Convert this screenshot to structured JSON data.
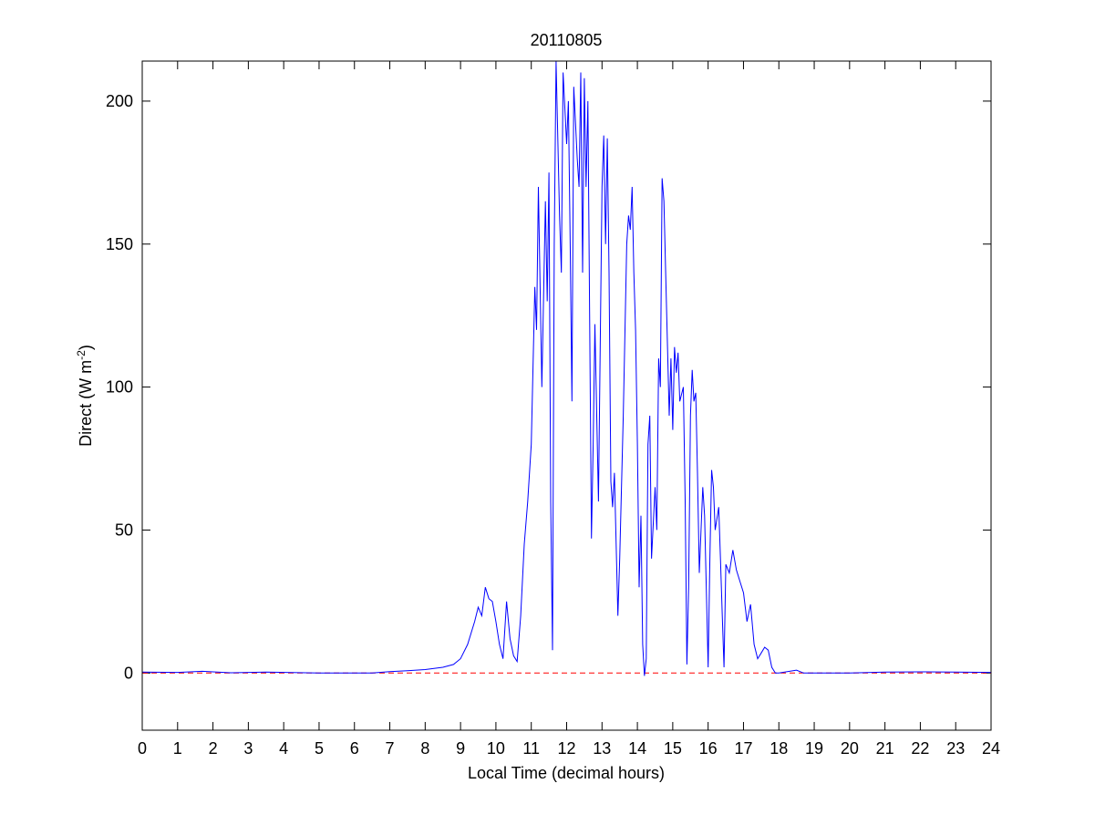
{
  "chart_data": {
    "type": "line",
    "title": "20110805",
    "xlabel": "Local Time (decimal hours)",
    "ylabel": {
      "text": "Direct (W m",
      "sup": "-2",
      "end": ")"
    },
    "xlim": [
      0,
      24
    ],
    "xticks": [
      0,
      1,
      2,
      3,
      4,
      5,
      6,
      7,
      8,
      9,
      10,
      11,
      12,
      13,
      14,
      15,
      16,
      17,
      18,
      19,
      20,
      21,
      22,
      23,
      24
    ],
    "ylim": [
      -20,
      214
    ],
    "yticks": [
      0,
      50,
      100,
      150,
      200
    ],
    "reference_line": {
      "value": 0,
      "color": "#ff0000",
      "style": "dashed"
    },
    "series": [
      {
        "color": "#0000ff",
        "x": [
          0,
          1,
          1.7,
          2.5,
          3.5,
          5,
          6.5,
          7,
          7.5,
          8,
          8.5,
          8.8,
          9,
          9.2,
          9.4,
          9.5,
          9.6,
          9.7,
          9.8,
          9.9,
          10.0,
          10.1,
          10.2,
          10.3,
          10.4,
          10.5,
          10.6,
          10.7,
          10.8,
          10.9,
          11.0,
          11.1,
          11.15,
          11.2,
          11.3,
          11.4,
          11.45,
          11.5,
          11.55,
          11.6,
          11.65,
          11.7,
          11.8,
          11.85,
          11.9,
          12.0,
          12.05,
          12.1,
          12.15,
          12.2,
          12.3,
          12.35,
          12.4,
          12.45,
          12.5,
          12.55,
          12.6,
          12.7,
          12.75,
          12.8,
          12.85,
          12.9,
          13.0,
          13.05,
          13.1,
          13.15,
          13.2,
          13.25,
          13.3,
          13.35,
          13.4,
          13.45,
          13.5,
          13.6,
          13.7,
          13.75,
          13.8,
          13.85,
          13.9,
          13.95,
          14.0,
          14.05,
          14.1,
          14.15,
          14.2,
          14.25,
          14.3,
          14.35,
          14.4,
          14.5,
          14.55,
          14.6,
          14.65,
          14.7,
          14.75,
          14.8,
          14.9,
          14.95,
          15.0,
          15.05,
          15.1,
          15.15,
          15.2,
          15.3,
          15.35,
          15.4,
          15.45,
          15.5,
          15.55,
          15.6,
          15.65,
          15.7,
          15.75,
          15.8,
          15.85,
          15.9,
          16.0,
          16.05,
          16.1,
          16.15,
          16.2,
          16.3,
          16.35,
          16.4,
          16.45,
          16.5,
          16.6,
          16.7,
          16.8,
          16.9,
          17.0,
          17.1,
          17.2,
          17.3,
          17.4,
          17.5,
          17.6,
          17.7,
          17.8,
          17.9,
          18.0,
          18.5,
          18.7,
          20,
          21,
          22,
          23,
          24
        ],
        "values": [
          0.3,
          0.2,
          0.6,
          0.1,
          0.3,
          0,
          0,
          0.5,
          0.8,
          1.2,
          2,
          3,
          5,
          10,
          18,
          23,
          20,
          30,
          26,
          25,
          18,
          10,
          5,
          25,
          12,
          6,
          4,
          20,
          45,
          60,
          80,
          135,
          120,
          170,
          100,
          165,
          130,
          175,
          60,
          8,
          150,
          214,
          160,
          140,
          210,
          185,
          200,
          150,
          95,
          205,
          180,
          170,
          210,
          140,
          208,
          170,
          200,
          47,
          80,
          122,
          90,
          60,
          170,
          188,
          150,
          187,
          140,
          67,
          58,
          70,
          45,
          20,
          40,
          90,
          150,
          160,
          155,
          170,
          140,
          120,
          80,
          30,
          55,
          10,
          -1,
          5,
          80,
          90,
          40,
          65,
          50,
          110,
          100,
          173,
          165,
          140,
          90,
          110,
          85,
          114,
          105,
          112,
          95,
          100,
          60,
          3,
          30,
          90,
          106,
          95,
          98,
          70,
          35,
          50,
          65,
          55,
          2,
          40,
          71,
          65,
          50,
          58,
          40,
          20,
          2,
          38,
          35,
          43,
          36,
          32,
          28,
          18,
          24,
          10,
          5,
          7,
          9,
          8,
          2,
          0,
          0,
          1,
          0,
          0,
          0.3,
          0.4,
          0.3,
          0.2
        ]
      }
    ]
  }
}
